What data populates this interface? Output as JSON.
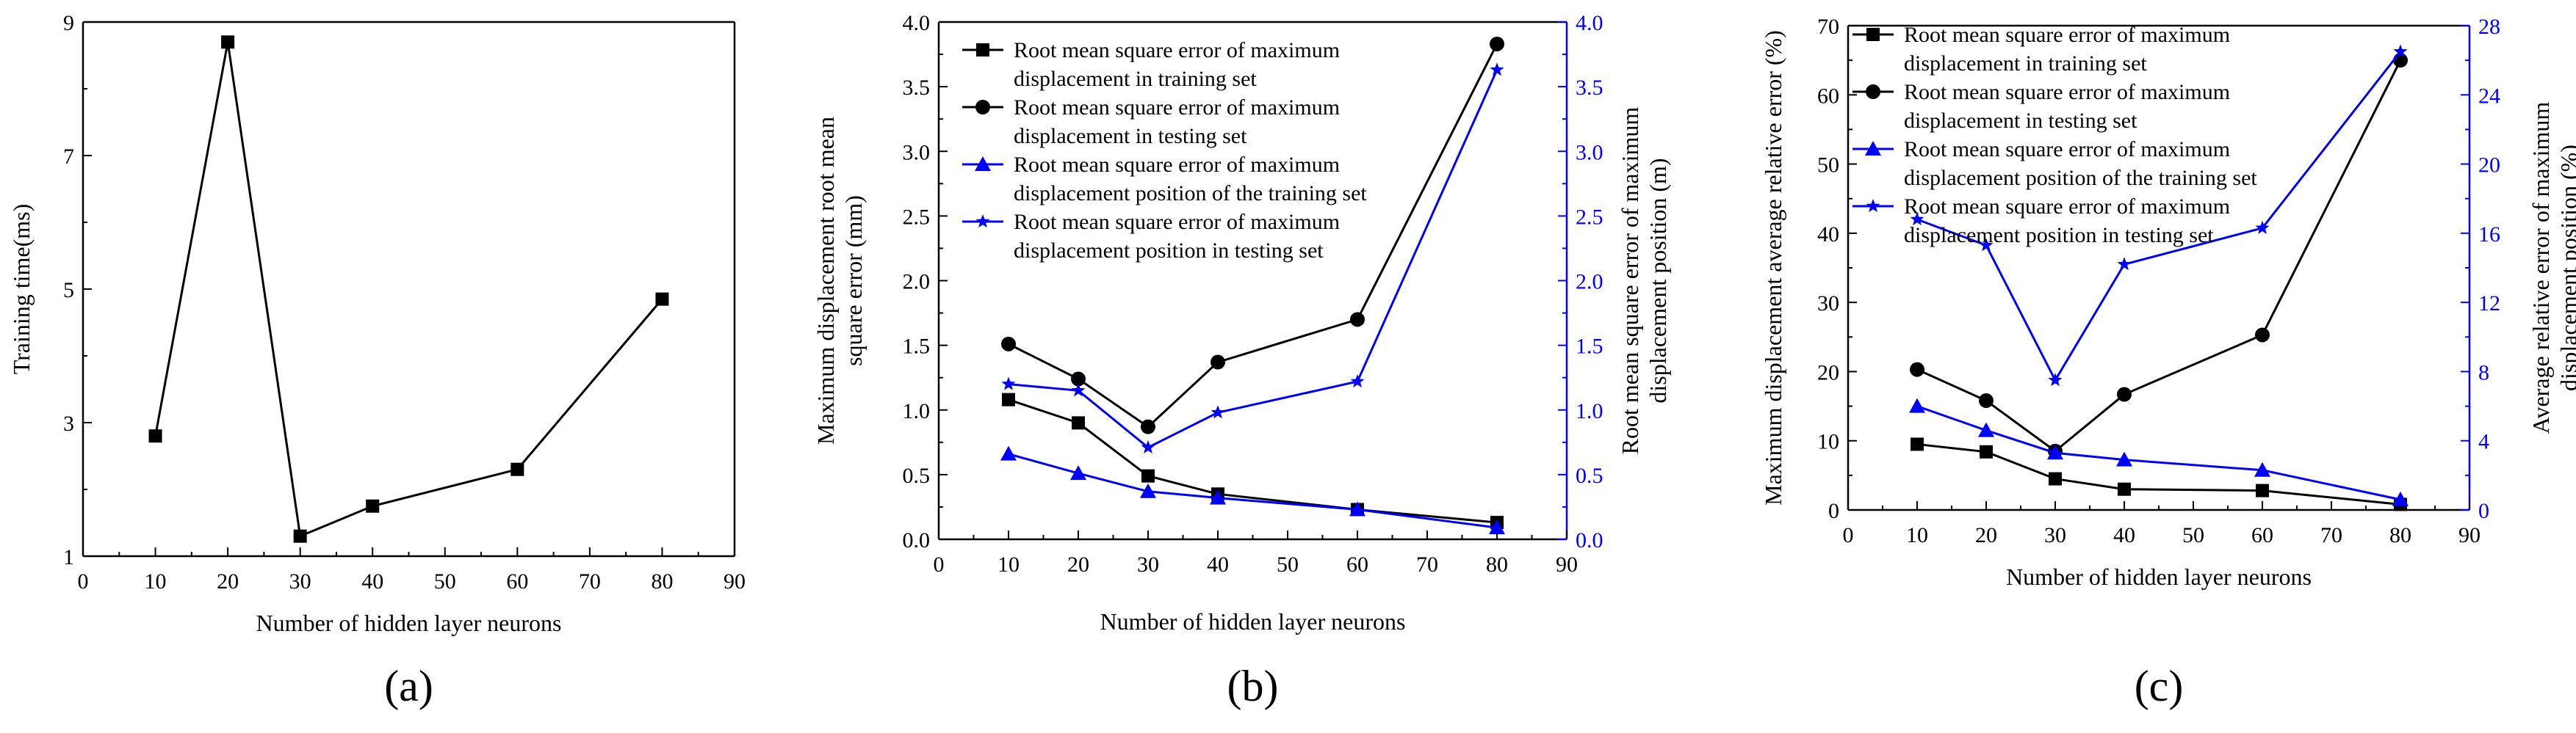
{
  "colors": {
    "black": "#000000",
    "blue": "#0000ff"
  },
  "chart_data": [
    {
      "type": "line",
      "panel_label": "(a)",
      "xlabel": "Number of hidden layer neurons",
      "ylabel": "Training time(ms)",
      "xlim": [
        0,
        90
      ],
      "ylim": [
        1,
        9
      ],
      "x_ticks": [
        "0",
        "10",
        "20",
        "30",
        "40",
        "50",
        "60",
        "70",
        "80",
        "90"
      ],
      "y_ticks": [
        "1",
        "3",
        "5",
        "7",
        "9"
      ],
      "series": [
        {
          "name": "Training time",
          "color": "#000000",
          "marker": "square",
          "x": [
            10,
            20,
            30,
            40,
            60,
            80
          ],
          "y": [
            2.8,
            8.7,
            1.3,
            1.75,
            2.3,
            4.85
          ]
        }
      ]
    },
    {
      "type": "line",
      "panel_label": "(b)",
      "xlabel": "Number of hidden layer neurons",
      "ylabel": [
        "Maximum displacement root mean",
        "square error (mm)"
      ],
      "y2label": [
        "Root mean square error of maximum",
        "displacement position (m)"
      ],
      "xlim": [
        0,
        90
      ],
      "ylim": [
        0,
        4
      ],
      "y2lim": [
        0,
        4
      ],
      "x_ticks": [
        "0",
        "10",
        "20",
        "30",
        "40",
        "50",
        "60",
        "70",
        "80",
        "90"
      ],
      "y_ticks": [
        "0.0",
        "0.5",
        "1.0",
        "1.5",
        "2.0",
        "2.5",
        "3.0",
        "3.5",
        "4.0"
      ],
      "y2_ticks": [
        "0.0",
        "0.5",
        "1.0",
        "1.5",
        "2.0",
        "2.5",
        "3.0",
        "3.5",
        "4.0"
      ],
      "series": [
        {
          "name": "Root mean square error of maximum displacement in training set",
          "legend": [
            "Root mean square error of maximum",
            "displacement in training set"
          ],
          "color": "#000000",
          "marker": "square",
          "axis": "left",
          "x": [
            10,
            20,
            30,
            40,
            60,
            80
          ],
          "y": [
            1.08,
            0.9,
            0.49,
            0.35,
            0.23,
            0.13
          ]
        },
        {
          "name": "Root mean square error of maximum displacement in testing set",
          "legend": [
            "Root mean square error of maximum",
            "displacement in testing set"
          ],
          "color": "#000000",
          "marker": "circle",
          "axis": "left",
          "x": [
            10,
            20,
            30,
            40,
            60,
            80
          ],
          "y": [
            1.51,
            1.24,
            0.87,
            1.37,
            1.7,
            3.83
          ]
        },
        {
          "name": "Root mean square error of maximum displacement position of the training set",
          "legend": [
            "Root mean square error of  maximum",
            "displacement position of the training set"
          ],
          "color": "#0000ff",
          "marker": "triangle",
          "axis": "right",
          "x": [
            10,
            20,
            30,
            40,
            60,
            80
          ],
          "y": [
            0.66,
            0.51,
            0.37,
            0.32,
            0.23,
            0.09
          ]
        },
        {
          "name": "Root mean square error of maximum displacement position in testing set",
          "legend": [
            "Root mean square error of maximum",
            "displacement position in testing set"
          ],
          "color": "#0000ff",
          "marker": "star",
          "axis": "right",
          "x": [
            10,
            20,
            30,
            40,
            60,
            80
          ],
          "y": [
            1.2,
            1.15,
            0.71,
            0.98,
            1.22,
            3.63
          ]
        }
      ]
    },
    {
      "type": "line",
      "panel_label": "(c)",
      "xlabel": "Number of hidden layer neurons",
      "ylabel": [
        "Maximum displacement average relative error (%)"
      ],
      "y2label": [
        "Average relative error of maximum",
        "displacement position (%)"
      ],
      "xlim": [
        0,
        90
      ],
      "ylim": [
        0,
        70
      ],
      "y2lim": [
        0,
        28
      ],
      "x_ticks": [
        "0",
        "10",
        "20",
        "30",
        "40",
        "50",
        "60",
        "70",
        "80",
        "90"
      ],
      "y_ticks": [
        "0",
        "10",
        "20",
        "30",
        "40",
        "50",
        "60",
        "70"
      ],
      "y2_ticks": [
        "0",
        "4",
        "8",
        "12",
        "16",
        "20",
        "24",
        "28"
      ],
      "series": [
        {
          "name": "Root mean square error of maximum displacement in training set",
          "legend": [
            "Root mean square error of maximum",
            "displacement in training set"
          ],
          "color": "#000000",
          "marker": "square",
          "axis": "left",
          "x": [
            10,
            20,
            30,
            40,
            60,
            80
          ],
          "y": [
            9.5,
            8.4,
            4.5,
            3.0,
            2.8,
            0.8
          ]
        },
        {
          "name": "Root mean square error of maximum displacement in testing set",
          "legend": [
            "Root mean square error of maximum",
            "displacement in testing set"
          ],
          "color": "#000000",
          "marker": "circle",
          "axis": "left",
          "x": [
            10,
            20,
            30,
            40,
            60,
            80
          ],
          "y": [
            20.3,
            15.8,
            8.5,
            16.7,
            25.3,
            65.0
          ]
        },
        {
          "name": "Root mean square error of maximum displacement position of the training set",
          "legend": [
            "Root mean square error of  maximum",
            "displacement position of the training set"
          ],
          "color": "#0000ff",
          "marker": "triangle",
          "axis": "right",
          "x": [
            10,
            20,
            30,
            40,
            60,
            80
          ],
          "y": [
            6.0,
            4.6,
            3.3,
            2.9,
            2.3,
            0.6
          ]
        },
        {
          "name": "Root mean square error of maximum displacement position in testing set",
          "legend": [
            "Root mean square error of maximum",
            "displacement position in testing set"
          ],
          "color": "#0000ff",
          "marker": "star",
          "axis": "right",
          "x": [
            10,
            20,
            30,
            40,
            60,
            80
          ],
          "y": [
            16.8,
            15.3,
            7.5,
            14.2,
            16.3,
            26.5
          ]
        }
      ]
    }
  ]
}
